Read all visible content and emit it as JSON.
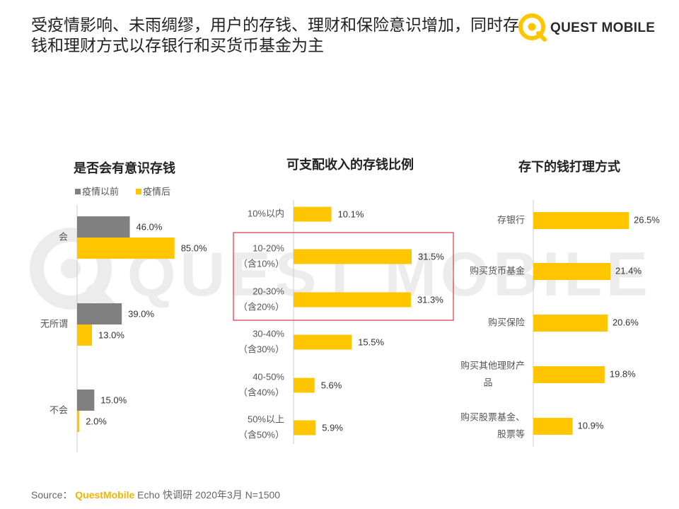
{
  "page": {
    "title": "受疫情影响、未雨绸缪，用户的存钱、理财和保险意识增加，同时存钱和理财方式以存银行和买货币基金为主",
    "logo_text": "QUEST MOBILE",
    "watermark_text": "QUEST MOBILE",
    "source_label": "Source：",
    "source_brand": "QuestMobile",
    "source_rest": "Echo 快调研  2020年3月  N=1500",
    "colors": {
      "gray": "#808080",
      "yellow": "#ffc600",
      "highlight": "#d9363e",
      "axis": "#cccccc"
    }
  },
  "chart_data": [
    {
      "type": "bar",
      "orientation": "horizontal",
      "title": "是否会有意识存钱",
      "categories": [
        "会",
        "无所谓",
        "不会"
      ],
      "series": [
        {
          "name": "疫情以前",
          "values": [
            46.0,
            39.0,
            15.0
          ],
          "labels": [
            "46.0%",
            "39.0%",
            "15.0%"
          ],
          "color": "#808080"
        },
        {
          "name": "疫情后",
          "values": [
            85.0,
            13.0,
            2.0
          ],
          "labels": [
            "85.0%",
            "13.0%",
            "2.0%"
          ],
          "color": "#ffc600"
        }
      ],
      "legend": "top-left",
      "unit": "%",
      "xlim": [
        0,
        100
      ]
    },
    {
      "type": "bar",
      "orientation": "horizontal",
      "title": "可支配收入的存钱比例",
      "categories": [
        [
          "10%以内"
        ],
        [
          "10-20%",
          "（含10%）"
        ],
        [
          "20-30%",
          "（含20%）"
        ],
        [
          "30-40%",
          "（含30%）"
        ],
        [
          "40-50%",
          "（含40%）"
        ],
        [
          "50%以上",
          "（含50%）"
        ]
      ],
      "series": [
        {
          "name": "疫情后",
          "values": [
            10.1,
            31.5,
            31.3,
            15.5,
            5.6,
            5.9
          ],
          "labels": [
            "10.1%",
            "31.5%",
            "31.3%",
            "15.5%",
            "5.6%",
            "5.9%"
          ],
          "color": "#ffc600"
        }
      ],
      "highlight_categories": [
        1,
        2
      ],
      "unit": "%",
      "xlim": [
        0,
        40
      ]
    },
    {
      "type": "bar",
      "orientation": "horizontal",
      "title": "存下的钱打理方式",
      "categories": [
        [
          "存银行"
        ],
        [
          "购买货币基金"
        ],
        [
          "购买保险"
        ],
        [
          "购买其他理财产",
          "品"
        ],
        [
          "购买股票基金、",
          "股票等"
        ]
      ],
      "series": [
        {
          "name": "疫情后",
          "values": [
            26.5,
            21.4,
            20.6,
            19.8,
            10.9
          ],
          "labels": [
            "26.5%",
            "21.4%",
            "20.6%",
            "19.8%",
            "10.9%"
          ],
          "color": "#ffc600"
        }
      ],
      "unit": "%",
      "xlim": [
        0,
        35
      ]
    }
  ]
}
